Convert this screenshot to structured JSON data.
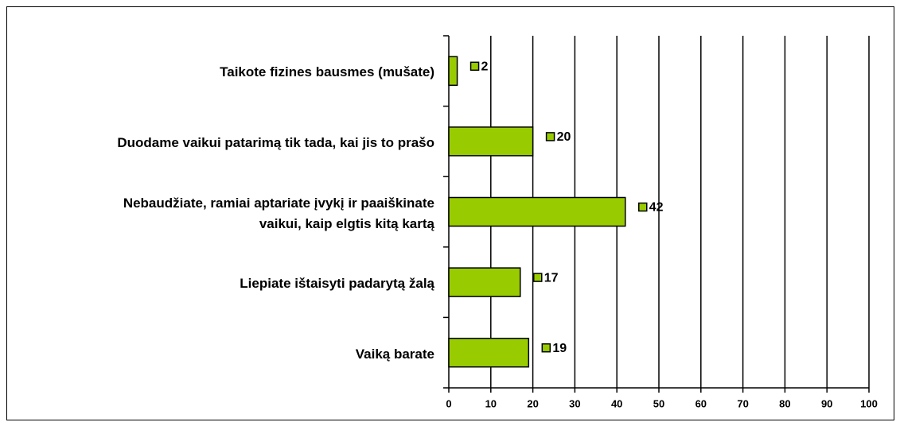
{
  "chart_data": {
    "type": "bar",
    "orientation": "horizontal",
    "categories": [
      "Taikote fizines bausmes (mušate)",
      "Duodame vaikui patarimą tik tada, kai jis to prašo",
      "Nebaudžiate, ramiai aptariate įvykį ir paaiškinate\nvaikui, kaip elgtis kitą kartą",
      "Liepiate ištaisyti padarytą žalą",
      "Vaiką barate"
    ],
    "values": [
      2,
      20,
      42,
      17,
      19
    ],
    "color": "#99cc00",
    "xlim": [
      0,
      100
    ],
    "xticks": [
      0,
      10,
      20,
      30,
      40,
      50,
      60,
      70,
      80,
      90,
      100
    ],
    "grid": true
  }
}
